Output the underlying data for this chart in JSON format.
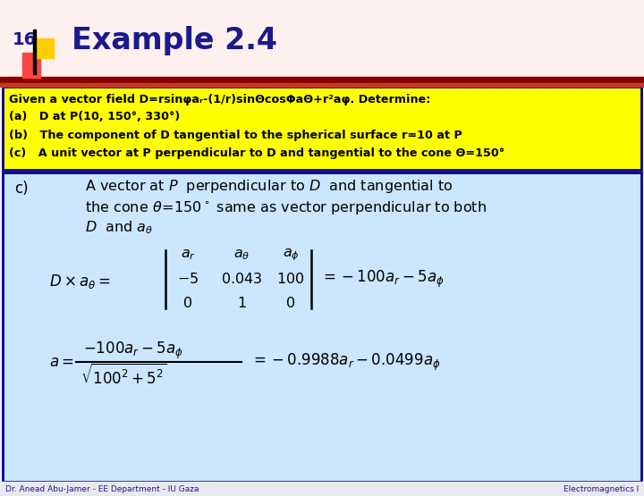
{
  "title": "Example 2.4",
  "slide_number": "16",
  "bg_color": "#FFF0F0",
  "header_bar_color": "#8B0000",
  "title_color": "#1a1a8c",
  "yellow_box_bg": "#FFFF00",
  "yellow_box_border": "#00008B",
  "content_bg": "#cce6ff",
  "content_border": "#00008B",
  "footer_left": "Dr. Anead Abu-Jamer - EE Department - IU Gaza",
  "footer_right": "Electromagnetics I",
  "yellow_lines": [
    "Given a vector field D=rsinφaᵣ-(1/r)sinΘcosΦaΘ+r²aφ. Determine:",
    "(a)   D at P(10, 150°, 330°)",
    "(b)   The component of D tangential to the spherical surface r=10 at P",
    "(c)   A unit vector at P perpendicular to D and tangential to the cone Θ=150°"
  ]
}
